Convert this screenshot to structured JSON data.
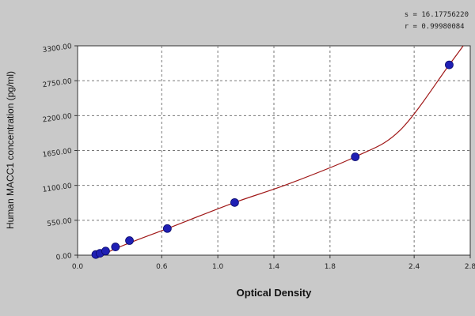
{
  "chart_data": {
    "type": "scatter",
    "xlabel": "Optical Density",
    "ylabel": "Human MACC1 concentration (pg/ml)",
    "xlim": [
      0.0,
      2.8
    ],
    "ylim": [
      0.0,
      3300.0
    ],
    "x_ticks": [
      "0.0",
      "0.6",
      "1.0",
      "1.4",
      "1.8",
      "2.4",
      "2.8"
    ],
    "x_tick_values": [
      0.0,
      0.6,
      1.0,
      1.4,
      1.8,
      2.4,
      2.8
    ],
    "y_ticks": [
      "0.00",
      "550.00",
      "1100.00",
      "1650.00",
      "2200.00",
      "2750.00",
      "3300.00"
    ],
    "y_tick_values": [
      0,
      550,
      1100,
      1650,
      2200,
      2750,
      3300
    ],
    "grid": true,
    "stats": {
      "s": "s = 16.17756220",
      "r": "r = 0.99980084"
    },
    "series": [
      {
        "kind": "points",
        "color": "#1f1fb4",
        "x": [
          0.13,
          0.16,
          0.2,
          0.27,
          0.37,
          0.64,
          1.12,
          1.98,
          2.65
        ],
        "y": [
          10,
          30,
          65,
          130,
          230,
          420,
          830,
          1550,
          3000
        ]
      },
      {
        "kind": "fit-curve",
        "color": "#a01818",
        "x": [
          0.0,
          0.3,
          0.64,
          1.12,
          1.5,
          1.98,
          2.3,
          2.65,
          2.75
        ],
        "y": [
          -180,
          130,
          420,
          830,
          1120,
          1550,
          1970,
          3000,
          3300
        ]
      }
    ]
  }
}
